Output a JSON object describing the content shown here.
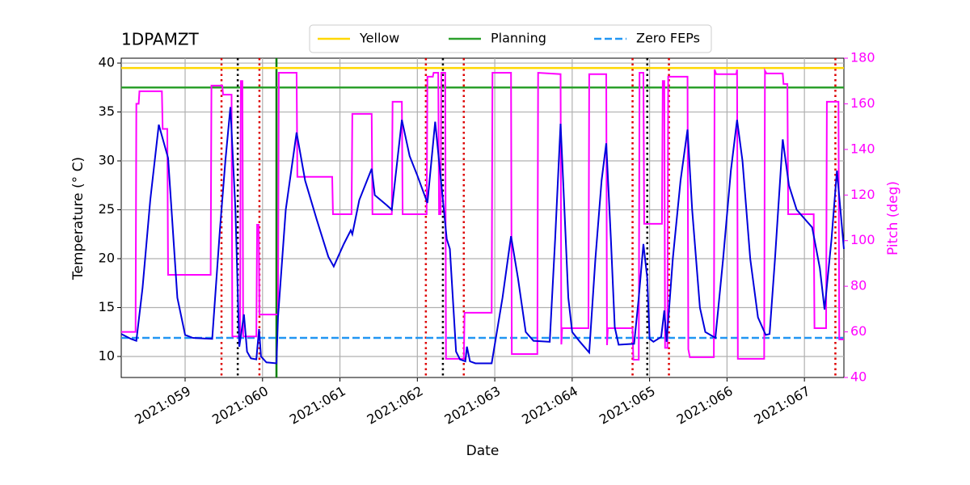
{
  "chart_data": {
    "type": "line",
    "title": "1DPAMZT",
    "x_label": "Date",
    "y_label": "Temperature (° C)",
    "y2_label": "Pitch (deg)",
    "y2_color": "#ff00ff",
    "xlim": [
      58.175,
      67.51
    ],
    "xticks": [
      {
        "value": 59,
        "label": "2021:059"
      },
      {
        "value": 60,
        "label": "2021:060"
      },
      {
        "value": 61,
        "label": "2021:061"
      },
      {
        "value": 62,
        "label": "2021:062"
      },
      {
        "value": 63,
        "label": "2021:063"
      },
      {
        "value": 64,
        "label": "2021:064"
      },
      {
        "value": 65,
        "label": "2021:065"
      },
      {
        "value": 66,
        "label": "2021:066"
      },
      {
        "value": 67,
        "label": "2021:067"
      }
    ],
    "ylim": [
      7.85,
      40.5
    ],
    "yticks": [
      10,
      15,
      20,
      25,
      30,
      35,
      40
    ],
    "y2lim": [
      40,
      180
    ],
    "y2ticks": [
      40,
      60,
      80,
      100,
      120,
      140,
      160,
      180
    ],
    "grid": true,
    "legend": "top",
    "hlines": [
      {
        "name": "Yellow",
        "color": "#ffd700",
        "value": 39.5,
        "dash": false
      },
      {
        "name": "Planning",
        "color": "#2ca02c",
        "value": 37.5,
        "dash": false
      },
      {
        "name": "Zero FEPs",
        "color": "#2196f3",
        "value": 11.9,
        "dash": true
      }
    ],
    "vlines": [
      {
        "color": "#dd0000",
        "style": "dotted",
        "x": [
          59.47,
          59.96,
          62.11,
          62.6,
          64.78,
          65.25,
          67.4
        ]
      },
      {
        "color": "#000000",
        "style": "dotted",
        "x": [
          59.68,
          62.33,
          64.97
        ]
      },
      {
        "color": "#008000",
        "style": "solid",
        "x": [
          60.18
        ]
      }
    ],
    "series": [
      {
        "color": "#ff00ff",
        "axis": "y2",
        "x": [
          58.175,
          58.36,
          58.37,
          58.4,
          58.41,
          58.7,
          58.71,
          58.77,
          58.78,
          59.33,
          59.34,
          59.48,
          59.49,
          59.6,
          59.61,
          59.71,
          59.72,
          59.74,
          59.75,
          59.92,
          59.93,
          59.95,
          59.96,
          60.2,
          60.21,
          60.44,
          60.45,
          60.9,
          60.91,
          61.15,
          61.16,
          61.41,
          61.42,
          61.67,
          61.68,
          61.8,
          61.81,
          62.12,
          62.13,
          62.2,
          62.21,
          62.27,
          62.28,
          62.3,
          62.31,
          62.36,
          62.37,
          62.6,
          62.61,
          62.96,
          62.97,
          63.21,
          63.22,
          63.55,
          63.56,
          63.85,
          63.86,
          63.87,
          64.21,
          64.22,
          64.44,
          64.45,
          64.46,
          64.78,
          64.79,
          64.86,
          64.87,
          64.92,
          64.93,
          65.16,
          65.17,
          65.19,
          65.2,
          65.23,
          65.24,
          65.49,
          65.5,
          65.52,
          65.83,
          65.84,
          65.86,
          66.12,
          66.13,
          66.14,
          66.48,
          66.49,
          66.51,
          66.72,
          66.73,
          66.78,
          66.79,
          67.12,
          67.13,
          67.28,
          67.29,
          67.44,
          67.45,
          67.51
        ],
        "values": [
          60,
          60,
          160,
          160,
          165.5,
          165.5,
          149,
          149,
          85,
          85,
          168,
          168,
          164,
          164,
          58,
          58,
          170,
          170,
          58,
          58,
          107,
          107,
          67.6,
          67.6,
          173.6,
          173.6,
          128,
          128,
          111.6,
          111.6,
          155.6,
          155.6,
          111.6,
          111.6,
          160.9,
          160.9,
          111.6,
          111.6,
          171.9,
          171.9,
          173.6,
          173.6,
          111.6,
          111.6,
          173.6,
          173.6,
          48.2,
          48.2,
          68.4,
          68.4,
          173.6,
          173.6,
          50.3,
          50.3,
          173.6,
          173,
          54.5,
          61.6,
          61.6,
          173,
          173,
          54.2,
          61.6,
          61.6,
          47.8,
          47.8,
          173.6,
          173.6,
          107.4,
          107.4,
          170,
          170,
          53,
          53,
          171.9,
          171.9,
          52.4,
          48.9,
          48.9,
          175,
          173,
          173,
          175,
          48.2,
          48.2,
          174.5,
          173.3,
          173.3,
          168.7,
          168.7,
          111.6,
          111.6,
          61.6,
          61.6,
          160.9,
          160.9,
          56.7,
          56.7
        ]
      },
      {
        "color": "#0000dd",
        "axis": "y",
        "x": [
          58.175,
          58.3,
          58.37,
          58.45,
          58.55,
          58.66,
          58.78,
          58.9,
          59.0,
          59.1,
          59.35,
          59.45,
          59.52,
          59.585,
          59.65,
          59.7,
          59.76,
          59.8,
          59.85,
          59.92,
          59.955,
          59.98,
          60.05,
          60.18,
          60.2,
          60.3,
          60.44,
          60.55,
          60.7,
          60.85,
          60.92,
          61.05,
          61.14,
          61.16,
          61.25,
          61.41,
          61.45,
          61.6,
          61.67,
          61.8,
          61.9,
          62.0,
          62.13,
          62.23,
          62.33,
          62.38,
          62.42,
          62.5,
          62.55,
          62.62,
          62.64,
          62.68,
          62.75,
          62.96,
          63.1,
          63.21,
          63.3,
          63.4,
          63.5,
          63.71,
          63.78,
          63.85,
          63.9,
          63.95,
          64.0,
          64.1,
          64.22,
          64.3,
          64.38,
          64.44,
          64.5,
          64.55,
          64.6,
          64.8,
          64.86,
          64.92,
          64.97,
          65.0,
          65.05,
          65.15,
          65.19,
          65.22,
          65.3,
          65.4,
          65.49,
          65.55,
          65.65,
          65.72,
          65.85,
          65.95,
          66.05,
          66.13,
          66.2,
          66.3,
          66.4,
          66.5,
          66.55,
          66.62,
          66.72,
          66.8,
          66.9,
          67.1,
          67.2,
          67.26,
          67.35,
          67.42,
          67.51
        ],
        "values": [
          12.3,
          11.8,
          11.6,
          17,
          26,
          33.7,
          30.3,
          16,
          12.2,
          11.9,
          11.8,
          23,
          30,
          35.5,
          25,
          11,
          14.3,
          10.5,
          9.8,
          9.7,
          12.8,
          10,
          9.4,
          9.3,
          14,
          25,
          32.9,
          28,
          24,
          20.2,
          19.2,
          21.5,
          22.9,
          22.5,
          26,
          29.2,
          26.5,
          25.5,
          25,
          34.2,
          30.5,
          28.5,
          25.7,
          34,
          26,
          22,
          21,
          10.5,
          9.7,
          9.5,
          11,
          9.5,
          9.3,
          9.3,
          16,
          22.3,
          18,
          12.5,
          11.6,
          11.5,
          22,
          33.8,
          25,
          16,
          12.5,
          11.5,
          10.4,
          20,
          28,
          31.8,
          22,
          13,
          11.2,
          11.3,
          16,
          21.5,
          18,
          11.8,
          11.5,
          12,
          14.7,
          11.5,
          20,
          28,
          33.2,
          25,
          15,
          12.5,
          11.9,
          20,
          29,
          34.2,
          30,
          20,
          14,
          12.2,
          12.3,
          20,
          32.2,
          27.5,
          25,
          23.2,
          19,
          14.8,
          22,
          29,
          21
        ]
      }
    ]
  }
}
